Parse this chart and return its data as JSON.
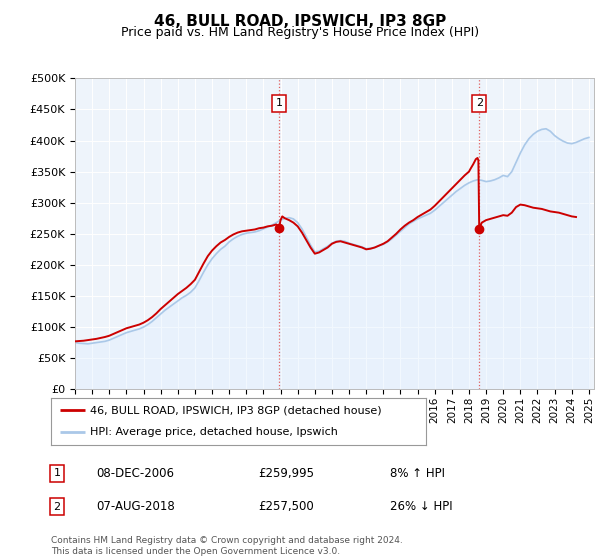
{
  "title": "46, BULL ROAD, IPSWICH, IP3 8GP",
  "subtitle": "Price paid vs. HM Land Registry's House Price Index (HPI)",
  "ylim": [
    0,
    500000
  ],
  "ytick_vals": [
    0,
    50000,
    100000,
    150000,
    200000,
    250000,
    300000,
    350000,
    400000,
    450000,
    500000
  ],
  "hpi_color": "#aac8e8",
  "hpi_fill_color": "#ddeeff",
  "price_color": "#cc0000",
  "annotation1": {
    "label": "1",
    "date": "08-DEC-2006",
    "price": "£259,995",
    "hpi": "8% ↑ HPI",
    "x_year": 2006.92
  },
  "annotation2": {
    "label": "2",
    "date": "07-AUG-2018",
    "price": "£257,500",
    "hpi": "26% ↓ HPI",
    "x_year": 2018.6
  },
  "legend_property": "46, BULL ROAD, IPSWICH, IP3 8GP (detached house)",
  "legend_hpi": "HPI: Average price, detached house, Ipswich",
  "footnote": "Contains HM Land Registry data © Crown copyright and database right 2024.\nThis data is licensed under the Open Government Licence v3.0.",
  "background_color": "#ffffff",
  "chart_bg_color": "#eef4fb",
  "grid_color": "#ffffff",
  "xlim_left": 1995,
  "xlim_right": 2025.3,
  "hpi_data": [
    [
      1995.0,
      75000
    ],
    [
      1995.25,
      74000
    ],
    [
      1995.5,
      73500
    ],
    [
      1995.75,
      73000
    ],
    [
      1996.0,
      74000
    ],
    [
      1996.25,
      75000
    ],
    [
      1996.5,
      76000
    ],
    [
      1996.75,
      77000
    ],
    [
      1997.0,
      79000
    ],
    [
      1997.25,
      82000
    ],
    [
      1997.5,
      85000
    ],
    [
      1997.75,
      88000
    ],
    [
      1998.0,
      91000
    ],
    [
      1998.25,
      93000
    ],
    [
      1998.5,
      95000
    ],
    [
      1998.75,
      97000
    ],
    [
      1999.0,
      100000
    ],
    [
      1999.25,
      104000
    ],
    [
      1999.5,
      109000
    ],
    [
      1999.75,
      115000
    ],
    [
      2000.0,
      121000
    ],
    [
      2000.25,
      127000
    ],
    [
      2000.5,
      132000
    ],
    [
      2000.75,
      137000
    ],
    [
      2001.0,
      142000
    ],
    [
      2001.25,
      147000
    ],
    [
      2001.5,
      151000
    ],
    [
      2001.75,
      156000
    ],
    [
      2002.0,
      163000
    ],
    [
      2002.25,
      175000
    ],
    [
      2002.5,
      188000
    ],
    [
      2002.75,
      200000
    ],
    [
      2003.0,
      210000
    ],
    [
      2003.25,
      218000
    ],
    [
      2003.5,
      225000
    ],
    [
      2003.75,
      230000
    ],
    [
      2004.0,
      237000
    ],
    [
      2004.25,
      242000
    ],
    [
      2004.5,
      246000
    ],
    [
      2004.75,
      249000
    ],
    [
      2005.0,
      251000
    ],
    [
      2005.25,
      252000
    ],
    [
      2005.5,
      253000
    ],
    [
      2005.75,
      255000
    ],
    [
      2006.0,
      258000
    ],
    [
      2006.25,
      261000
    ],
    [
      2006.5,
      264000
    ],
    [
      2006.75,
      268000
    ],
    [
      2007.0,
      272000
    ],
    [
      2007.25,
      275000
    ],
    [
      2007.5,
      276000
    ],
    [
      2007.75,
      274000
    ],
    [
      2008.0,
      268000
    ],
    [
      2008.25,
      258000
    ],
    [
      2008.5,
      245000
    ],
    [
      2008.75,
      232000
    ],
    [
      2009.0,
      221000
    ],
    [
      2009.25,
      222000
    ],
    [
      2009.5,
      226000
    ],
    [
      2009.75,
      230000
    ],
    [
      2010.0,
      235000
    ],
    [
      2010.25,
      238000
    ],
    [
      2010.5,
      239000
    ],
    [
      2010.75,
      238000
    ],
    [
      2011.0,
      235000
    ],
    [
      2011.25,
      233000
    ],
    [
      2011.5,
      231000
    ],
    [
      2011.75,
      229000
    ],
    [
      2012.0,
      226000
    ],
    [
      2012.25,
      227000
    ],
    [
      2012.5,
      228000
    ],
    [
      2012.75,
      231000
    ],
    [
      2013.0,
      233000
    ],
    [
      2013.25,
      237000
    ],
    [
      2013.5,
      242000
    ],
    [
      2013.75,
      248000
    ],
    [
      2014.0,
      254000
    ],
    [
      2014.25,
      260000
    ],
    [
      2014.5,
      266000
    ],
    [
      2014.75,
      270000
    ],
    [
      2015.0,
      274000
    ],
    [
      2015.25,
      277000
    ],
    [
      2015.5,
      280000
    ],
    [
      2015.75,
      283000
    ],
    [
      2016.0,
      288000
    ],
    [
      2016.25,
      294000
    ],
    [
      2016.5,
      300000
    ],
    [
      2016.75,
      306000
    ],
    [
      2017.0,
      312000
    ],
    [
      2017.25,
      318000
    ],
    [
      2017.5,
      323000
    ],
    [
      2017.75,
      328000
    ],
    [
      2018.0,
      332000
    ],
    [
      2018.25,
      335000
    ],
    [
      2018.5,
      337000
    ],
    [
      2018.75,
      336000
    ],
    [
      2019.0,
      334000
    ],
    [
      2019.25,
      335000
    ],
    [
      2019.5,
      337000
    ],
    [
      2019.75,
      340000
    ],
    [
      2020.0,
      344000
    ],
    [
      2020.25,
      342000
    ],
    [
      2020.5,
      350000
    ],
    [
      2020.75,
      365000
    ],
    [
      2021.0,
      380000
    ],
    [
      2021.25,
      393000
    ],
    [
      2021.5,
      403000
    ],
    [
      2021.75,
      410000
    ],
    [
      2022.0,
      415000
    ],
    [
      2022.25,
      418000
    ],
    [
      2022.5,
      419000
    ],
    [
      2022.75,
      415000
    ],
    [
      2023.0,
      408000
    ],
    [
      2023.25,
      403000
    ],
    [
      2023.5,
      399000
    ],
    [
      2023.75,
      396000
    ],
    [
      2024.0,
      395000
    ],
    [
      2024.25,
      397000
    ],
    [
      2024.5,
      400000
    ],
    [
      2024.75,
      403000
    ],
    [
      2025.0,
      405000
    ]
  ],
  "price_data": [
    [
      1995.0,
      77000
    ],
    [
      1995.25,
      77500
    ],
    [
      1995.5,
      78000
    ],
    [
      1995.75,
      79000
    ],
    [
      1996.0,
      80000
    ],
    [
      1996.25,
      81000
    ],
    [
      1996.5,
      82500
    ],
    [
      1996.75,
      84000
    ],
    [
      1997.0,
      86000
    ],
    [
      1997.25,
      89000
    ],
    [
      1997.5,
      92000
    ],
    [
      1997.75,
      95000
    ],
    [
      1998.0,
      98000
    ],
    [
      1998.25,
      100000
    ],
    [
      1998.5,
      102000
    ],
    [
      1998.75,
      104000
    ],
    [
      1999.0,
      107000
    ],
    [
      1999.25,
      111000
    ],
    [
      1999.5,
      116000
    ],
    [
      1999.75,
      122000
    ],
    [
      2000.0,
      129000
    ],
    [
      2000.25,
      135000
    ],
    [
      2000.5,
      141000
    ],
    [
      2000.75,
      147000
    ],
    [
      2001.0,
      153000
    ],
    [
      2001.25,
      158000
    ],
    [
      2001.5,
      163000
    ],
    [
      2001.75,
      169000
    ],
    [
      2002.0,
      176000
    ],
    [
      2002.25,
      189000
    ],
    [
      2002.5,
      202000
    ],
    [
      2002.75,
      214000
    ],
    [
      2003.0,
      223000
    ],
    [
      2003.25,
      230000
    ],
    [
      2003.5,
      236000
    ],
    [
      2003.75,
      240000
    ],
    [
      2004.0,
      245000
    ],
    [
      2004.25,
      249000
    ],
    [
      2004.5,
      252000
    ],
    [
      2004.75,
      254000
    ],
    [
      2005.0,
      255000
    ],
    [
      2005.25,
      256000
    ],
    [
      2005.5,
      257000
    ],
    [
      2005.75,
      259000
    ],
    [
      2006.0,
      260000
    ],
    [
      2006.25,
      262000
    ],
    [
      2006.5,
      263000
    ],
    [
      2006.75,
      265000
    ],
    [
      2006.92,
      259995
    ],
    [
      2007.0,
      272000
    ],
    [
      2007.1,
      278000
    ],
    [
      2007.25,
      275000
    ],
    [
      2007.5,
      272000
    ],
    [
      2007.75,
      268000
    ],
    [
      2008.0,
      262000
    ],
    [
      2008.25,
      252000
    ],
    [
      2008.5,
      240000
    ],
    [
      2008.75,
      228000
    ],
    [
      2009.0,
      218000
    ],
    [
      2009.25,
      220000
    ],
    [
      2009.5,
      224000
    ],
    [
      2009.75,
      228000
    ],
    [
      2010.0,
      234000
    ],
    [
      2010.25,
      237000
    ],
    [
      2010.5,
      238000
    ],
    [
      2010.75,
      236000
    ],
    [
      2011.0,
      234000
    ],
    [
      2011.25,
      232000
    ],
    [
      2011.5,
      230000
    ],
    [
      2011.75,
      228000
    ],
    [
      2012.0,
      225000
    ],
    [
      2012.25,
      226000
    ],
    [
      2012.5,
      228000
    ],
    [
      2012.75,
      231000
    ],
    [
      2013.0,
      234000
    ],
    [
      2013.25,
      238000
    ],
    [
      2013.5,
      244000
    ],
    [
      2013.75,
      250000
    ],
    [
      2014.0,
      257000
    ],
    [
      2014.25,
      263000
    ],
    [
      2014.5,
      268000
    ],
    [
      2014.75,
      272000
    ],
    [
      2015.0,
      277000
    ],
    [
      2015.25,
      281000
    ],
    [
      2015.5,
      285000
    ],
    [
      2015.75,
      289000
    ],
    [
      2016.0,
      295000
    ],
    [
      2016.25,
      302000
    ],
    [
      2016.5,
      309000
    ],
    [
      2016.75,
      316000
    ],
    [
      2017.0,
      323000
    ],
    [
      2017.25,
      330000
    ],
    [
      2017.5,
      337000
    ],
    [
      2017.75,
      344000
    ],
    [
      2018.0,
      350000
    ],
    [
      2018.1,
      355000
    ],
    [
      2018.25,
      362000
    ],
    [
      2018.4,
      370000
    ],
    [
      2018.5,
      372000
    ],
    [
      2018.55,
      368000
    ],
    [
      2018.6,
      257500
    ],
    [
      2018.65,
      262000
    ],
    [
      2018.75,
      268000
    ],
    [
      2019.0,
      272000
    ],
    [
      2019.25,
      274000
    ],
    [
      2019.5,
      276000
    ],
    [
      2019.75,
      278000
    ],
    [
      2020.0,
      280000
    ],
    [
      2020.25,
      279000
    ],
    [
      2020.5,
      284000
    ],
    [
      2020.75,
      293000
    ],
    [
      2021.0,
      297000
    ],
    [
      2021.25,
      296000
    ],
    [
      2021.5,
      294000
    ],
    [
      2021.75,
      292000
    ],
    [
      2022.0,
      291000
    ],
    [
      2022.25,
      290000
    ],
    [
      2022.5,
      288000
    ],
    [
      2022.75,
      286000
    ],
    [
      2023.0,
      285000
    ],
    [
      2023.25,
      284000
    ],
    [
      2023.5,
      282000
    ],
    [
      2023.75,
      280000
    ],
    [
      2024.0,
      278000
    ],
    [
      2024.25,
      277000
    ]
  ]
}
